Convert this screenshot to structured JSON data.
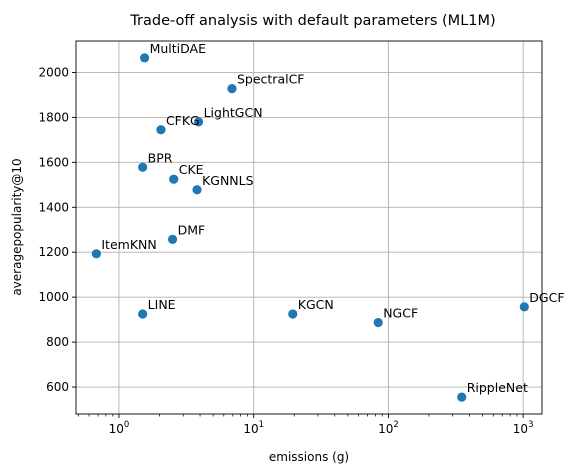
{
  "chart_data": {
    "type": "scatter",
    "title": "Trade-off analysis with default parameters (ML1M)",
    "xlabel": "emissions (g)",
    "ylabel": "averagepopularity@10",
    "xscale": "log",
    "xlim": [
      0.48,
      1380
    ],
    "ylim": [
      480,
      2140
    ],
    "xticks": [
      {
        "value": 1,
        "label": "10",
        "exp": "0"
      },
      {
        "value": 10,
        "label": "10",
        "exp": "1"
      },
      {
        "value": 100,
        "label": "10",
        "exp": "2"
      },
      {
        "value": 1000,
        "label": "10",
        "exp": "3"
      }
    ],
    "yticks": [
      600,
      800,
      1000,
      1200,
      1400,
      1600,
      1800,
      2000
    ],
    "grid": true,
    "color": "#1f77b4",
    "points": [
      {
        "label": "MultiDAE",
        "x": 1.55,
        "y": 2065
      },
      {
        "label": "SpectralCF",
        "x": 6.9,
        "y": 1928
      },
      {
        "label": "LightGCN",
        "x": 3.9,
        "y": 1780
      },
      {
        "label": "CFKG",
        "x": 2.05,
        "y": 1745
      },
      {
        "label": "BPR",
        "x": 1.5,
        "y": 1578
      },
      {
        "label": "CKE",
        "x": 2.55,
        "y": 1525
      },
      {
        "label": "KGNNLS",
        "x": 3.8,
        "y": 1478
      },
      {
        "label": "DMF",
        "x": 2.5,
        "y": 1257
      },
      {
        "label": "ItemKNN",
        "x": 0.68,
        "y": 1193
      },
      {
        "label": "LINE",
        "x": 1.5,
        "y": 925
      },
      {
        "label": "KGCN",
        "x": 19.5,
        "y": 925
      },
      {
        "label": "NGCF",
        "x": 84,
        "y": 887
      },
      {
        "label": "DGCF",
        "x": 1020,
        "y": 957
      },
      {
        "label": "RippleNet",
        "x": 350,
        "y": 555
      }
    ]
  }
}
